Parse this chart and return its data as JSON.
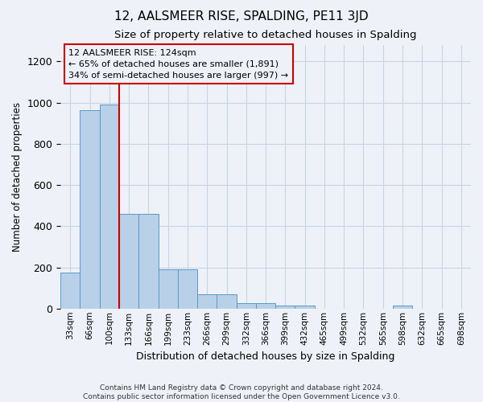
{
  "title": "12, AALSMEER RISE, SPALDING, PE11 3JD",
  "subtitle": "Size of property relative to detached houses in Spalding",
  "xlabel": "Distribution of detached houses by size in Spalding",
  "ylabel": "Number of detached properties",
  "categories": [
    "33sqm",
    "66sqm",
    "100sqm",
    "133sqm",
    "166sqm",
    "199sqm",
    "233sqm",
    "266sqm",
    "299sqm",
    "332sqm",
    "366sqm",
    "399sqm",
    "432sqm",
    "465sqm",
    "499sqm",
    "532sqm",
    "565sqm",
    "598sqm",
    "632sqm",
    "665sqm",
    "698sqm"
  ],
  "values": [
    175,
    965,
    990,
    460,
    460,
    190,
    190,
    70,
    70,
    25,
    25,
    15,
    15,
    0,
    0,
    0,
    0,
    15,
    0,
    0,
    0
  ],
  "bar_color": "#b8d0e8",
  "bar_edge_color": "#5a9ac8",
  "grid_color": "#c8d4e4",
  "bg_color": "#eef2f8",
  "vline_x": 2.5,
  "vline_color": "#cc0000",
  "annotation_lines": [
    "12 AALSMEER RISE: 124sqm",
    "← 65% of detached houses are smaller (1,891)",
    "34% of semi-detached houses are larger (997) →"
  ],
  "annotation_box_color": "#cc0000",
  "footer": "Contains HM Land Registry data © Crown copyright and database right 2024.\nContains public sector information licensed under the Open Government Licence v3.0.",
  "ylim": [
    0,
    1280
  ],
  "yticks": [
    0,
    200,
    400,
    600,
    800,
    1000,
    1200
  ],
  "title_fontsize": 11,
  "subtitle_fontsize": 9.5,
  "xlabel_fontsize": 9,
  "ylabel_fontsize": 8.5
}
